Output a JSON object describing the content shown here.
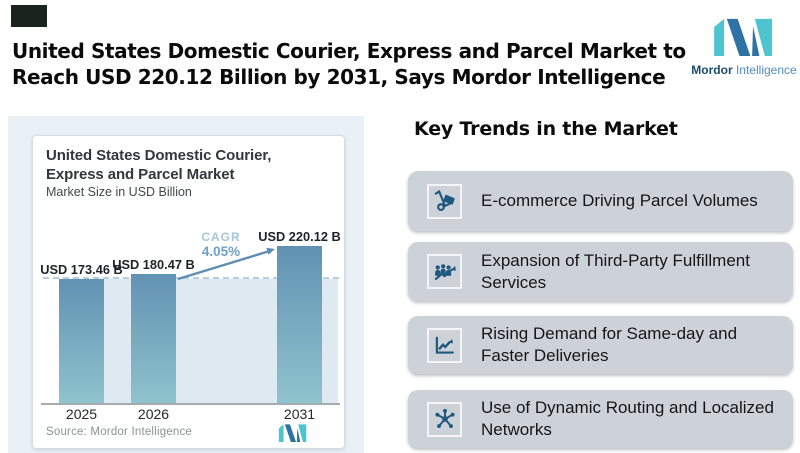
{
  "header": {
    "title_line1": "United States Domestic Courier, Express and Parcel Market to",
    "title_line2": "Reach USD 220.12 Billion by 2031, Says Mordor Intelligence"
  },
  "brand": {
    "name_bold": "Mordor",
    "name_light": "Intelligence"
  },
  "chart_card": {
    "title_line1": "United States Domestic Courier,",
    "title_line2": "Express and Parcel Market",
    "subtitle": "Market Size in USD Billion",
    "cagr_label": "CAGR",
    "cagr_value": "4.05%",
    "source": "Source: Mordor Intelligence"
  },
  "chart_data": {
    "type": "bar",
    "title": "United States Domestic Courier, Express and Parcel Market",
    "subtitle": "Market Size in USD Billion",
    "categories": [
      "2025",
      "2026",
      "2031"
    ],
    "values": [
      173.46,
      180.47,
      220.12
    ],
    "bar_labels": [
      "USD 173.46 B",
      "USD 180.47 B",
      "USD 220.12 B"
    ],
    "unit": "USD Billion",
    "cagr_label": "CAGR",
    "cagr_value": "4.05%",
    "reference_line_value": 173.46,
    "source": "Source: Mordor Intelligence",
    "ylim": [
      0,
      240
    ],
    "grid": "off",
    "legend": "none",
    "bar_color_top": "#6292b3",
    "bar_color_bottom": "#8fc3cd",
    "shade_color": "#dfe9f2",
    "accent_blue": "#5d8fb4"
  },
  "trends": {
    "heading": "Key Trends in the Market",
    "items": [
      {
        "icon": "hand-truck-icon",
        "label": "E-commerce Driving Parcel Volumes"
      },
      {
        "icon": "team-growth-icon",
        "label": "Expansion of Third-Party Fulfillment Services"
      },
      {
        "icon": "line-chart-icon",
        "label": "Rising Demand for Same-day and Faster Deliveries"
      },
      {
        "icon": "network-icon",
        "label": "Use of Dynamic Routing and Localized Networks"
      }
    ]
  },
  "colors": {
    "logo_teal": "#4ec4d1",
    "logo_blue": "#2f73a6",
    "icon_blue": "#1e587e",
    "trend_card_bg": "#cdd2d9"
  }
}
